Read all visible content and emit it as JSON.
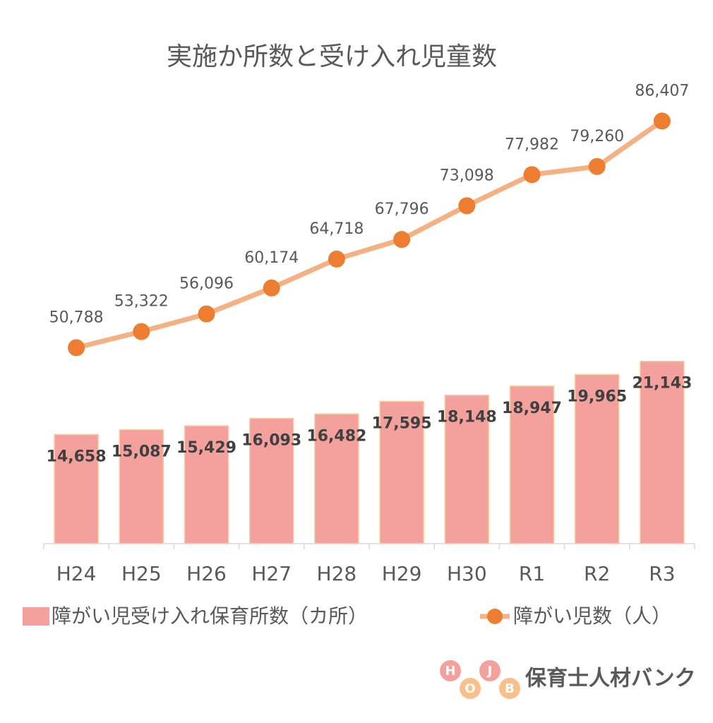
{
  "chart_data": {
    "type": "bar-line",
    "title": "実施か所数と受け入れ児童数",
    "categories": [
      "H24",
      "H25",
      "H26",
      "H27",
      "H28",
      "H29",
      "H30",
      "R1",
      "R2",
      "R3"
    ],
    "series": [
      {
        "name": "障がい児受け入れ保育所数（カ所）",
        "type": "bar",
        "color": "#f4a09c",
        "values": [
          14658,
          15087,
          15429,
          16093,
          16482,
          17595,
          18148,
          18947,
          19965,
          21143
        ],
        "value_labels": [
          "14,658",
          "15,087",
          "15,429",
          "16,093",
          "16,482",
          "17,595",
          "18,148",
          "18,947",
          "19,965",
          "21,143"
        ]
      },
      {
        "name": "障がい児数（人）",
        "type": "line",
        "axis": "y2",
        "color": "#f4b183",
        "marker_color": "#ed7d31",
        "values": [
          50788,
          53322,
          56096,
          60174,
          64718,
          67796,
          73098,
          77982,
          79260,
          86407
        ],
        "value_labels": [
          "50,788",
          "53,322",
          "56,096",
          "60,174",
          "64,718",
          "67,796",
          "73,098",
          "77,982",
          "79,260",
          "86,407"
        ]
      }
    ],
    "ylim": [
      5000,
      45000
    ],
    "y2lim": [
      20000,
      91000
    ]
  },
  "logo": {
    "letters": [
      "H",
      "O",
      "J",
      "B"
    ],
    "text": "保育士人材バンク"
  }
}
